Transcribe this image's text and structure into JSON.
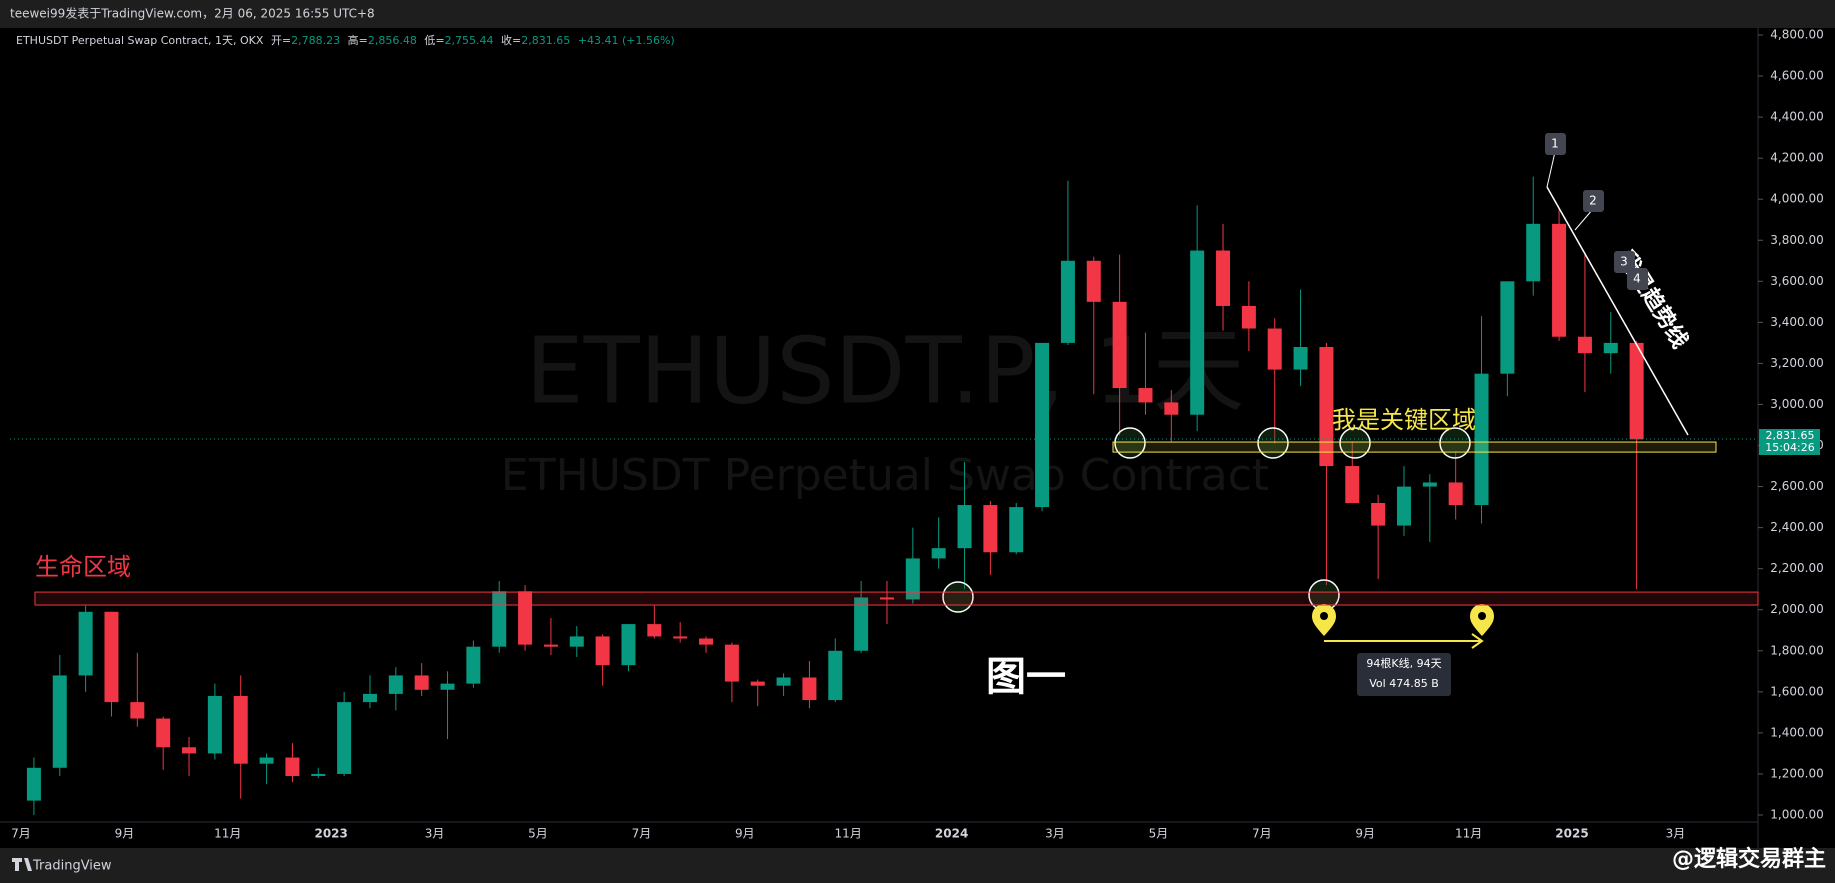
{
  "header": {
    "text": "teewei99发表于TradingView.com，2月 06, 2025 16:55 UTC+8"
  },
  "legend": {
    "symbol": "ETHUSDT Perpetual Swap Contract, 1天, OKX",
    "open_label": "开=",
    "open": "2,788.23",
    "high_label": "高=",
    "high": "2,856.48",
    "low_label": "低=",
    "low": "2,755.44",
    "close_label": "收=",
    "close": "2,831.65",
    "change": "+43.41 (+1.56%)"
  },
  "watermark": {
    "line1": "ETHUSDT.P, 1天",
    "line2": "ETHUSDT Perpetual Swap Contract"
  },
  "price_axis": {
    "ylim": [
      1000,
      4800
    ],
    "ticks": [
      {
        "value": 1000,
        "label": "1,000.00"
      },
      {
        "value": 1200,
        "label": "1,200.00"
      },
      {
        "value": 1400,
        "label": "1,400.00"
      },
      {
        "value": 1600,
        "label": "1,600.00"
      },
      {
        "value": 1800,
        "label": "1,800.00"
      },
      {
        "value": 2000,
        "label": "2,000.00"
      },
      {
        "value": 2200,
        "label": "2,200.00"
      },
      {
        "value": 2400,
        "label": "2,400.00"
      },
      {
        "value": 2600,
        "label": "2,600.00"
      },
      {
        "value": 2800,
        "label": "2,800.00"
      },
      {
        "value": 3000,
        "label": "3,000.00"
      },
      {
        "value": 3200,
        "label": "3,200.00"
      },
      {
        "value": 3400,
        "label": "3,400.00"
      },
      {
        "value": 3600,
        "label": "3,600.00"
      },
      {
        "value": 3800,
        "label": "3,800.00"
      },
      {
        "value": 4000,
        "label": "4,000.00"
      },
      {
        "value": 4200,
        "label": "4,200.00"
      },
      {
        "value": 4400,
        "label": "4,400.00"
      },
      {
        "value": 4600,
        "label": "4,600.00"
      },
      {
        "value": 4800,
        "label": "4,800.00"
      }
    ],
    "last_price": {
      "value": 2831.65,
      "label": "2,831.65"
    },
    "countdown": "15:04:26"
  },
  "time_axis": [
    "7月",
    "9月",
    "11月",
    "2023",
    "3月",
    "5月",
    "7月",
    "9月",
    "11月",
    "2024",
    "3月",
    "5月",
    "7月",
    "9月",
    "11月",
    "2025",
    "3月"
  ],
  "candles": [
    [
      1070,
      1280,
      1000,
      1230
    ],
    [
      1230,
      1780,
      1190,
      1680
    ],
    [
      1680,
      2020,
      1600,
      1990
    ],
    [
      1990,
      1990,
      1480,
      1550
    ],
    [
      1550,
      1790,
      1430,
      1470
    ],
    [
      1470,
      1480,
      1220,
      1330
    ],
    [
      1330,
      1380,
      1190,
      1300
    ],
    [
      1300,
      1640,
      1270,
      1580
    ],
    [
      1580,
      1680,
      1080,
      1250
    ],
    [
      1250,
      1300,
      1150,
      1280
    ],
    [
      1280,
      1350,
      1160,
      1190
    ],
    [
      1190,
      1230,
      1180,
      1200
    ],
    [
      1200,
      1600,
      1190,
      1550
    ],
    [
      1550,
      1680,
      1520,
      1590
    ],
    [
      1590,
      1720,
      1510,
      1680
    ],
    [
      1680,
      1740,
      1580,
      1610
    ],
    [
      1610,
      1700,
      1370,
      1640
    ],
    [
      1640,
      1850,
      1620,
      1820
    ],
    [
      1820,
      2140,
      1790,
      2090
    ],
    [
      2090,
      2120,
      1800,
      1830
    ],
    [
      1830,
      1960,
      1780,
      1820
    ],
    [
      1820,
      1920,
      1770,
      1870
    ],
    [
      1870,
      1880,
      1630,
      1730
    ],
    [
      1730,
      1930,
      1700,
      1930
    ],
    [
      1930,
      2020,
      1860,
      1870
    ],
    [
      1870,
      1940,
      1840,
      1860
    ],
    [
      1860,
      1870,
      1790,
      1830
    ],
    [
      1830,
      1840,
      1550,
      1650
    ],
    [
      1650,
      1660,
      1530,
      1630
    ],
    [
      1630,
      1690,
      1580,
      1670
    ],
    [
      1670,
      1750,
      1520,
      1560
    ],
    [
      1560,
      1860,
      1550,
      1800
    ],
    [
      1800,
      2140,
      1790,
      2060
    ],
    [
      2060,
      2140,
      1930,
      2050
    ],
    [
      2050,
      2400,
      2030,
      2250
    ],
    [
      2250,
      2450,
      2200,
      2300
    ],
    [
      2300,
      2720,
      2100,
      2510
    ],
    [
      2510,
      2530,
      2170,
      2280
    ],
    [
      2280,
      2520,
      2270,
      2500
    ],
    [
      2500,
      3300,
      2480,
      3300
    ],
    [
      3300,
      4090,
      3290,
      3700
    ],
    [
      3700,
      3720,
      3050,
      3500
    ],
    [
      3500,
      3730,
      2850,
      3080
    ],
    [
      3080,
      3350,
      2950,
      3010
    ],
    [
      3010,
      3070,
      2820,
      2950
    ],
    [
      2950,
      3970,
      2870,
      3750
    ],
    [
      3750,
      3880,
      3360,
      3480
    ],
    [
      3480,
      3600,
      3260,
      3370
    ],
    [
      3370,
      3420,
      2810,
      3170
    ],
    [
      3170,
      3560,
      3090,
      3280
    ],
    [
      3280,
      3300,
      2120,
      2700
    ],
    [
      2700,
      2820,
      2520,
      2520
    ],
    [
      2520,
      2560,
      2150,
      2410
    ],
    [
      2410,
      2700,
      2360,
      2600
    ],
    [
      2600,
      2660,
      2330,
      2620
    ],
    [
      2620,
      2770,
      2440,
      2510
    ],
    [
      2510,
      3430,
      2420,
      3150
    ],
    [
      3150,
      3600,
      3040,
      3600
    ],
    [
      3600,
      4110,
      3530,
      3880
    ],
    [
      3880,
      3950,
      3310,
      3330
    ],
    [
      3330,
      3740,
      3060,
      3250
    ],
    [
      3250,
      3450,
      3150,
      3300
    ],
    [
      3300,
      3310,
      2100,
      2830
    ]
  ],
  "zones": [
    {
      "label": "生命区域",
      "low": 2023,
      "high": 2086
    },
    {
      "label": "我是关键区域",
      "low": 2768,
      "high": 2817
    }
  ],
  "trendline_label": "我是趋势线",
  "points": [
    "1",
    "2",
    "3",
    "4"
  ],
  "figure_label": "图一",
  "range_tooltip": {
    "bars": "94根K线, 94天",
    "volume": "Vol 474.85 B"
  },
  "footer": {
    "brand": "TradingView",
    "watermark": "@逻辑交易群主"
  }
}
